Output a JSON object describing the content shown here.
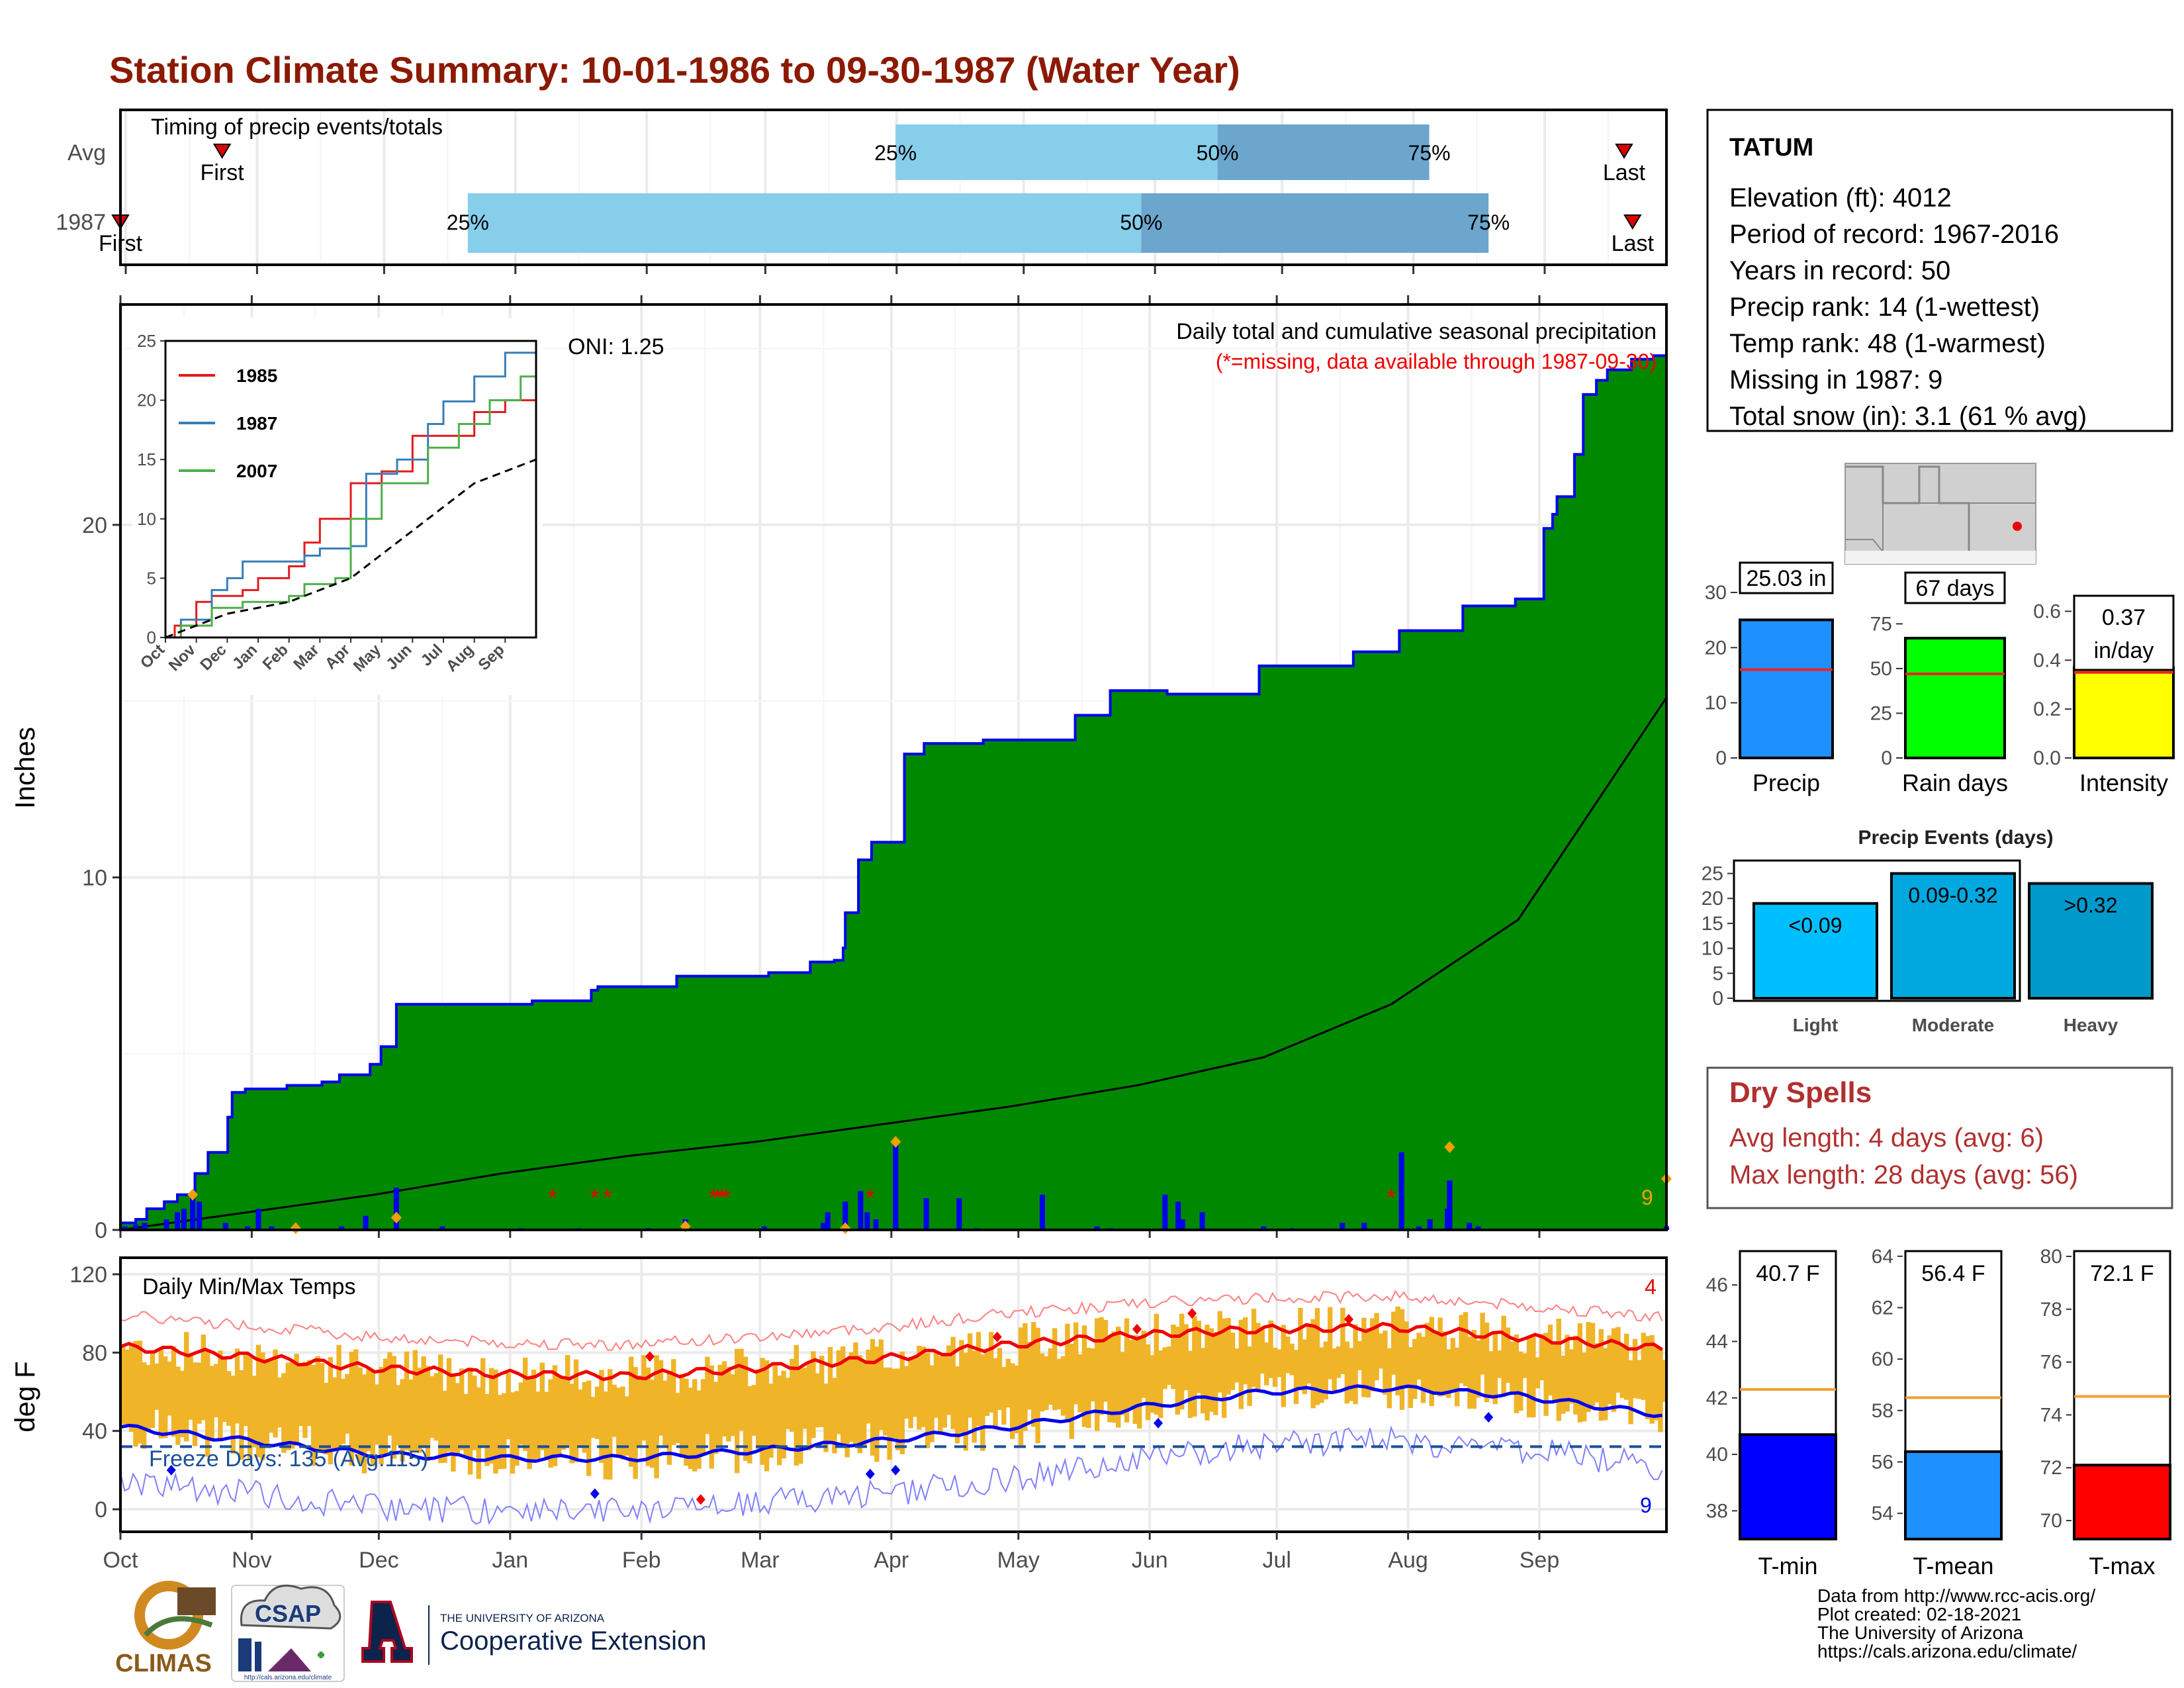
{
  "page": {
    "title": "Station Climate Summary: 10-01-1986 to 09-30-1987 (Water Year)",
    "colors": {
      "title": "#8b1a00",
      "precip_area": "#008800",
      "precip_line": "#0000ee",
      "normal_area": "#e0e0e0",
      "temp_band": "#f0b428",
      "tmax_line": "#ee0000",
      "tmin_line": "#0000ee",
      "dryspell": "#b03030"
    }
  },
  "timing": {
    "title": "Timing of precip events/totals",
    "rows": [
      "Avg",
      "1987"
    ],
    "avg": {
      "first_label": "First",
      "last_label": "Last",
      "p25": "25%",
      "p50": "50%",
      "p75": "75%",
      "first_day": 24,
      "p25_day": 183,
      "p50_day": 259,
      "p75_day": 309,
      "last_day": 355
    },
    "y1987": {
      "first_label": "First",
      "last_label": "Last",
      "p25": "25%",
      "p50": "50%",
      "p75": "75%",
      "first_day": 0,
      "p25_day": 82,
      "p50_day": 241,
      "p75_day": 323,
      "last_day": 357
    },
    "colors": {
      "light": "#87ceeb",
      "dark": "#6ca6cd",
      "marker": "#dd0000"
    }
  },
  "main": {
    "ylabel": "Inches",
    "yticks": [
      "0",
      "10",
      "20"
    ],
    "oni": "ONI: 1.25",
    "caption": "Daily total and cumulative seasonal precipitation",
    "missing_note": "(*=missing, data available through 1987-09-30)",
    "missing_count": "9",
    "months": [
      "Oct",
      "Nov",
      "Dec",
      "Jan",
      "Feb",
      "Mar",
      "Apr",
      "May",
      "Jun",
      "Jul",
      "Aug",
      "Sep"
    ]
  },
  "inset": {
    "yticks": [
      "0",
      "5",
      "10",
      "15",
      "20",
      "25"
    ],
    "months": [
      "Oct",
      "Nov",
      "Dec",
      "Jan",
      "Feb",
      "Mar",
      "Apr",
      "May",
      "Jun",
      "Jul",
      "Aug",
      "Sep"
    ],
    "legend": [
      {
        "name": "1985",
        "color": "#e41a1c"
      },
      {
        "name": "1987",
        "color": "#377eb8"
      },
      {
        "name": "2007",
        "color": "#4daf4a"
      }
    ]
  },
  "temps": {
    "title": "Daily Min/Max Temps",
    "ylabel": "deg F",
    "yticks": [
      "0",
      "40",
      "80",
      "120"
    ],
    "freeze": "Freeze Days: 135 (Avg:115)",
    "missing_max": "4",
    "missing_min": "9"
  },
  "station": {
    "name": "TATUM",
    "lines": [
      "Elevation (ft): 4012",
      "Period of record: 1967-2016",
      "Years in record: 50",
      "Precip rank: 14 (1-wettest)",
      "Temp rank: 48 (1-warmest)",
      "Missing in 1987: 9",
      "Total snow (in): 3.1 (61 % avg)"
    ]
  },
  "bars": {
    "precip": {
      "label": "Precip",
      "value_text": "25.03 in",
      "yticks": [
        "0",
        "10",
        "20",
        "30"
      ],
      "color": "#1e90ff"
    },
    "raindays": {
      "label": "Rain days",
      "value_text": "67 days",
      "yticks": [
        "0",
        "25",
        "50",
        "75"
      ],
      "color": "#00ff00"
    },
    "intensity": {
      "label": "Intensity",
      "value_text_1": "0.37",
      "value_text_2": "in/day",
      "yticks": [
        "0.0",
        "0.2",
        "0.4",
        "0.6"
      ],
      "color": "#ffff00"
    }
  },
  "events": {
    "title": "Precip Events (days)",
    "yticks": [
      "0",
      "5",
      "10",
      "15",
      "20",
      "25"
    ],
    "categories": [
      "Light",
      "Moderate",
      "Heavy"
    ],
    "labels": [
      "<0.09",
      "0.09-0.32",
      ">0.32"
    ],
    "colors": [
      "#00bfff",
      "#00a8e0",
      "#0099cc"
    ]
  },
  "dryspells": {
    "title": "Dry Spells",
    "avg": "Avg length: 4 days (avg: 6)",
    "max": "Max length: 28 days (avg: 56)"
  },
  "tbars": {
    "tmin": {
      "label": "T-min",
      "value_text": "40.7 F",
      "yticks": [
        "38",
        "40",
        "42",
        "44",
        "46"
      ],
      "color": "#0000ff"
    },
    "tmean": {
      "label": "T-mean",
      "value_text": "56.4 F",
      "yticks": [
        "54",
        "56",
        "58",
        "60",
        "62",
        "64"
      ],
      "color": "#1e90ff"
    },
    "tmax": {
      "label": "T-max",
      "value_text": "72.1 F",
      "yticks": [
        "70",
        "72",
        "74",
        "76",
        "78",
        "80"
      ],
      "color": "#ff0000"
    }
  },
  "footer": {
    "lines": [
      "Data from http://www.rcc-acis.org/",
      "Plot created: 02-18-2021",
      "The University of Arizona",
      "https://cals.arizona.edu/climate/"
    ],
    "logos": {
      "climas": "CLIMAS",
      "csap": "CSAP",
      "csap_url": "http://cals.arizona.edu/climate",
      "ua_top": "THE UNIVERSITY OF ARIZONA",
      "ua_bottom": "Cooperative Extension"
    }
  },
  "chart_data": [
    {
      "type": "area",
      "title": "Daily total and cumulative seasonal precipitation",
      "ylabel": "Inches",
      "ylim": [
        0,
        25.5
      ],
      "xlim_days": [
        0,
        365
      ],
      "cumulative_1987_steps": [
        [
          0,
          0.2
        ],
        [
          7,
          0.3
        ],
        [
          12,
          0.6
        ],
        [
          20,
          0.8
        ],
        [
          26,
          1.0
        ],
        [
          34,
          1.6
        ],
        [
          40,
          2.2
        ],
        [
          49,
          3.2
        ],
        [
          51,
          3.9
        ],
        [
          57,
          4.0
        ],
        [
          76,
          4.1
        ],
        [
          92,
          4.2
        ],
        [
          100,
          4.4
        ],
        [
          114,
          4.7
        ],
        [
          119,
          5.2
        ],
        [
          126,
          6.4
        ],
        [
          188,
          6.5
        ],
        [
          215,
          6.8
        ],
        [
          218,
          6.9
        ],
        [
          254,
          7.2
        ],
        [
          296,
          7.3
        ],
        [
          315,
          7.6
        ],
        [
          326,
          7.65
        ],
        [
          330,
          8.0
        ],
        [
          331,
          9.0
        ],
        [
          337,
          10.5
        ],
        [
          343,
          11.0
        ],
        [
          358,
          13.5
        ],
        [
          367,
          13.8
        ],
        [
          394,
          13.9
        ],
        [
          436,
          14.6
        ],
        [
          452,
          15.3
        ],
        [
          478,
          15.2
        ],
        [
          520,
          16.0
        ],
        [
          563,
          16.4
        ],
        [
          584,
          17.0
        ],
        [
          613,
          17.7
        ],
        [
          637,
          17.9
        ],
        [
          650,
          19.9
        ],
        [
          654,
          20.3
        ],
        [
          656,
          20.8
        ],
        [
          664,
          22.0
        ],
        [
          668,
          23.7
        ],
        [
          674,
          24.1
        ],
        [
          679,
          24.4
        ],
        [
          690,
          24.7
        ],
        [
          700,
          24.8
        ],
        [
          706,
          25.03
        ]
      ],
      "normal_cumulative": [
        [
          0,
          0
        ],
        [
          30,
          0.5
        ],
        [
          60,
          1.0
        ],
        [
          90,
          1.6
        ],
        [
          120,
          2.1
        ],
        [
          150,
          2.5
        ],
        [
          180,
          3.0
        ],
        [
          210,
          3.5
        ],
        [
          240,
          4.1
        ],
        [
          270,
          4.9
        ],
        [
          300,
          6.4
        ],
        [
          330,
          8.8
        ],
        [
          365,
          15.1
        ]
      ],
      "daily_precip": [
        [
          2,
          0.1
        ],
        [
          7,
          0.15
        ],
        [
          11,
          0.2
        ],
        [
          21,
          0.3
        ],
        [
          26,
          0.5
        ],
        [
          29,
          0.6
        ],
        [
          33,
          1.0
        ],
        [
          36,
          0.8
        ],
        [
          48,
          0.2
        ],
        [
          58,
          0.1
        ],
        [
          63,
          0.6
        ],
        [
          69,
          0.1
        ],
        [
          101,
          0.1
        ],
        [
          112,
          0.4
        ],
        [
          126,
          1.2
        ],
        [
          147,
          0.1
        ],
        [
          183,
          0.05
        ],
        [
          209,
          0.05
        ],
        [
          241,
          0.05
        ],
        [
          258,
          0.3
        ],
        [
          294,
          0.1
        ],
        [
          321,
          0.2
        ],
        [
          323,
          0.5
        ],
        [
          331,
          0.8
        ],
        [
          338,
          1.1
        ],
        [
          341,
          0.5
        ],
        [
          345,
          0.3
        ],
        [
          354,
          2.5
        ],
        [
          368,
          0.9
        ],
        [
          383,
          0.9
        ],
        [
          391,
          0.05
        ],
        [
          421,
          1.0
        ],
        [
          446,
          0.1
        ],
        [
          452,
          0.05
        ],
        [
          477,
          1.0
        ],
        [
          483,
          0.8
        ],
        [
          485,
          0.3
        ],
        [
          494,
          0.5
        ],
        [
          522,
          0.1
        ],
        [
          535,
          0.05
        ],
        [
          558,
          0.2
        ],
        [
          568,
          0.2
        ],
        [
          585,
          2.2
        ],
        [
          593,
          0.1
        ],
        [
          598,
          0.3
        ],
        [
          606,
          0.6
        ],
        [
          607,
          1.4
        ],
        [
          616,
          0.2
        ],
        [
          620,
          0.1
        ],
        [
          706,
          0.1
        ]
      ],
      "note": "cumulative step values in inches; x in day-of-water-year units are rescaled to 365"
    },
    {
      "type": "line",
      "title": "inset cumulative precipitation",
      "series": [
        {
          "name": "1985",
          "values": [
            [
              0,
              0
            ],
            [
              0.3,
              1
            ],
            [
              1,
              3
            ],
            [
              1.5,
              3.5
            ],
            [
              2.5,
              4
            ],
            [
              3,
              5
            ],
            [
              4,
              6
            ],
            [
              4.5,
              8
            ],
            [
              5,
              10
            ],
            [
              6,
              13
            ],
            [
              7,
              14
            ],
            [
              8,
              17
            ],
            [
              10,
              19
            ],
            [
              11,
              20
            ],
            [
              12,
              24
            ]
          ]
        },
        {
          "name": "1987",
          "values": [
            [
              0,
              0
            ],
            [
              0.5,
              1.5
            ],
            [
              1.5,
              4
            ],
            [
              2,
              5
            ],
            [
              2.5,
              6.4
            ],
            [
              4.5,
              6.9
            ],
            [
              5,
              7.5
            ],
            [
              6,
              7.7
            ],
            [
              6.5,
              13.8
            ],
            [
              7.5,
              15
            ],
            [
              8.5,
              18
            ],
            [
              9,
              19.9
            ],
            [
              10,
              22
            ],
            [
              11,
              24
            ],
            [
              12,
              25
            ]
          ]
        },
        {
          "name": "2007",
          "values": [
            [
              0,
              0
            ],
            [
              0.5,
              1
            ],
            [
              1.5,
              2.5
            ],
            [
              2.5,
              3
            ],
            [
              4,
              3.5
            ],
            [
              4.5,
              4.5
            ],
            [
              5.5,
              5
            ],
            [
              6,
              10
            ],
            [
              7,
              13
            ],
            [
              8.5,
              16
            ],
            [
              9.5,
              18
            ],
            [
              10.5,
              20
            ],
            [
              11.5,
              22
            ],
            [
              12,
              25
            ]
          ]
        },
        {
          "values": [
            [
              0,
              0
            ],
            [
              2,
              2
            ],
            [
              4,
              3
            ],
            [
              6,
              5
            ],
            [
              8,
              9
            ],
            [
              10,
              13
            ],
            [
              12,
              15
            ]
          ]
        }
      ],
      "ylim": [
        0,
        25
      ],
      "xticks": [
        "Oct",
        "Nov",
        "Dec",
        "Jan",
        "Feb",
        "Mar",
        "Apr",
        "May",
        "Jun",
        "Jul",
        "Aug",
        "Sep"
      ]
    },
    {
      "type": "line",
      "title": "Daily Min/Max Temps",
      "ylabel": "deg F",
      "ylim": [
        -10,
        120
      ],
      "tmax_mean": [
        [
          0,
          83
        ],
        [
          30,
          78
        ],
        [
          60,
          72
        ],
        [
          90,
          69
        ],
        [
          120,
          68
        ],
        [
          150,
          72
        ],
        [
          180,
          77
        ],
        [
          210,
          84
        ],
        [
          240,
          89
        ],
        [
          270,
          92
        ],
        [
          300,
          93
        ],
        [
          330,
          88
        ],
        [
          365,
          82
        ]
      ],
      "tmin_mean": [
        [
          0,
          42
        ],
        [
          30,
          35
        ],
        [
          60,
          28
        ],
        [
          90,
          26
        ],
        [
          120,
          26
        ],
        [
          150,
          30
        ],
        [
          180,
          35
        ],
        [
          210,
          42
        ],
        [
          240,
          52
        ],
        [
          270,
          60
        ],
        [
          300,
          62
        ],
        [
          330,
          58
        ],
        [
          365,
          48
        ]
      ],
      "freeze_line": 32
    },
    {
      "type": "bar",
      "categories": [
        "Precip",
        "Rain days",
        "Intensity"
      ],
      "values": [
        25.03,
        67,
        0.37
      ],
      "averages": [
        16,
        47,
        0.35
      ]
    },
    {
      "type": "bar",
      "title": "Precip Events (days)",
      "categories": [
        "Light",
        "Moderate",
        "Heavy"
      ],
      "values": [
        19,
        25,
        23
      ],
      "ylim": [
        0,
        25
      ]
    },
    {
      "type": "bar",
      "categories": [
        "T-min",
        "T-mean",
        "T-max"
      ],
      "values": [
        40.7,
        56.4,
        72.1
      ],
      "averages": [
        42.3,
        58.5,
        74.7
      ]
    }
  ]
}
